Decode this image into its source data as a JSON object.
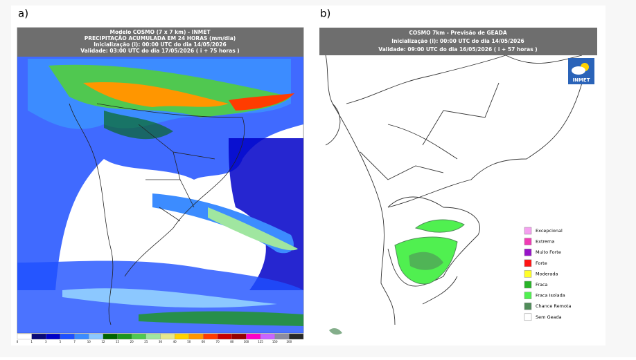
{
  "panel_a": {
    "label": "a)",
    "header": [
      "Modelo COSMO (7 x 7 km) - INMET",
      "PRECIPITAÇÃO ACUMULADA EM 24 HORAS (mm/dia)",
      "Inicialização (i): 00:00 UTC do dia 14/05/2026",
      "Validade: 03:00 UTC do dia 17/05/2026 ( i + 75 horas )"
    ],
    "colorbar": {
      "labels": [
        0,
        1,
        3,
        5,
        7,
        10,
        12,
        15,
        20,
        25,
        30,
        40,
        50,
        60,
        70,
        80,
        100,
        125,
        150,
        200
      ],
      "colors": [
        "#ffffff",
        "#0a0a78",
        "#0000c8",
        "#1e50ff",
        "#3c8cff",
        "#8cc8ff",
        "#006400",
        "#1e961e",
        "#50c850",
        "#a0e6a0",
        "#e6e68c",
        "#ffd200",
        "#ff9600",
        "#ff3c00",
        "#c80000",
        "#960000",
        "#ff00c8",
        "#c864ff",
        "#8c8ca0",
        "#282828"
      ]
    }
  },
  "panel_b": {
    "label": "b)",
    "header": [
      "COSMO 7km - Previsão de GEADA",
      "Inicialização (i): 00:00 UTC do dia 14/05/2026",
      "Validade: 09:00 UTC do dia 16/05/2026 ( i + 57 horas )"
    ],
    "logo": "INMET",
    "legend": [
      {
        "name": "Excepcional",
        "color": "#f5a0f0"
      },
      {
        "name": "Extrema",
        "color": "#f03cb4"
      },
      {
        "name": "Muito Forte",
        "color": "#9614c8"
      },
      {
        "name": "Forte",
        "color": "#ff1414"
      },
      {
        "name": "Moderada",
        "color": "#ffff28"
      },
      {
        "name": "Fraca",
        "color": "#28b428"
      },
      {
        "name": "Fraca Isolada",
        "color": "#50f050"
      },
      {
        "name": "Chance Remota",
        "color": "#508c5a"
      },
      {
        "name": "Sem Geada",
        "color": "#ffffff"
      }
    ]
  }
}
